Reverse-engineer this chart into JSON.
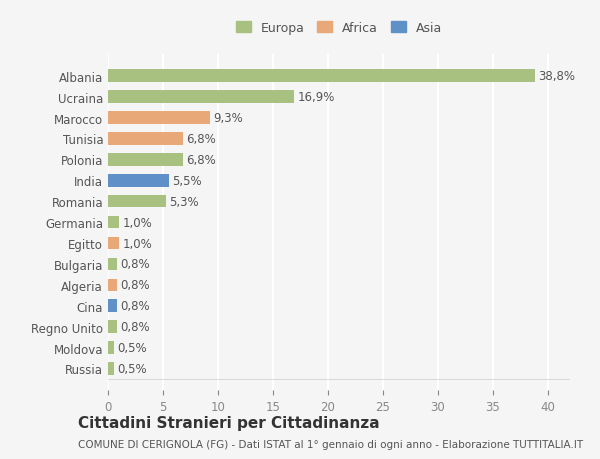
{
  "countries": [
    "Albania",
    "Ucraina",
    "Marocco",
    "Tunisia",
    "Polonia",
    "India",
    "Romania",
    "Germania",
    "Egitto",
    "Bulgaria",
    "Algeria",
    "Cina",
    "Regno Unito",
    "Moldova",
    "Russia"
  ],
  "values": [
    38.8,
    16.9,
    9.3,
    6.8,
    6.8,
    5.5,
    5.3,
    1.0,
    1.0,
    0.8,
    0.8,
    0.8,
    0.8,
    0.5,
    0.5
  ],
  "labels": [
    "38,8%",
    "16,9%",
    "9,3%",
    "6,8%",
    "6,8%",
    "5,5%",
    "5,3%",
    "1,0%",
    "1,0%",
    "0,8%",
    "0,8%",
    "0,8%",
    "0,8%",
    "0,5%",
    "0,5%"
  ],
  "continents": [
    "Europa",
    "Europa",
    "Africa",
    "Africa",
    "Europa",
    "Asia",
    "Europa",
    "Europa",
    "Africa",
    "Europa",
    "Africa",
    "Asia",
    "Europa",
    "Europa",
    "Europa"
  ],
  "colors": {
    "Europa": "#a8c080",
    "Africa": "#e8a878",
    "Asia": "#6090c8"
  },
  "legend_colors": {
    "Europa": "#a8c080",
    "Africa": "#e8a878",
    "Asia": "#6090c8"
  },
  "xlim": [
    0,
    42
  ],
  "xticks": [
    0,
    5,
    10,
    15,
    20,
    25,
    30,
    35,
    40
  ],
  "title": "Cittadini Stranieri per Cittadinanza",
  "subtitle": "COMUNE DI CERIGNOLA (FG) - Dati ISTAT al 1° gennaio di ogni anno - Elaborazione TUTTITALIA.IT",
  "bg_color": "#f5f5f5",
  "grid_color": "#ffffff",
  "bar_height": 0.6,
  "label_fontsize": 8.5,
  "ytick_fontsize": 8.5,
  "xtick_fontsize": 8.5,
  "title_fontsize": 11,
  "subtitle_fontsize": 7.5
}
